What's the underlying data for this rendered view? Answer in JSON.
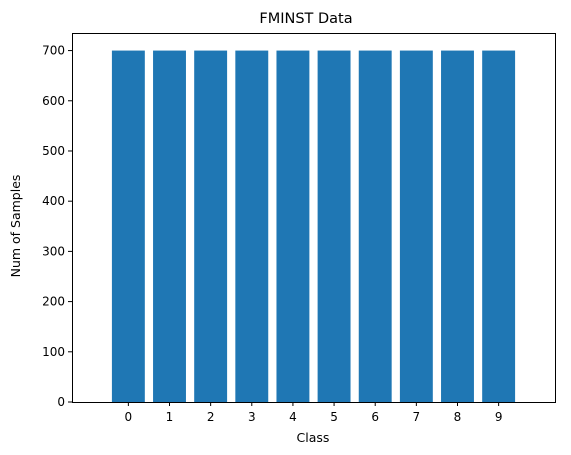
{
  "chart_data": {
    "type": "bar",
    "title": "FMINST Data",
    "xlabel": "Class",
    "ylabel": "Num of Samples",
    "categories": [
      "0",
      "1",
      "2",
      "3",
      "4",
      "5",
      "6",
      "7",
      "8",
      "9"
    ],
    "values": [
      700,
      700,
      700,
      700,
      700,
      700,
      700,
      700,
      700,
      700
    ],
    "ylim": [
      0,
      735
    ],
    "yticks": [
      0,
      100,
      200,
      300,
      400,
      500,
      600,
      700
    ],
    "bar_color": "#1f77b4",
    "grid": false,
    "legend": "none"
  }
}
